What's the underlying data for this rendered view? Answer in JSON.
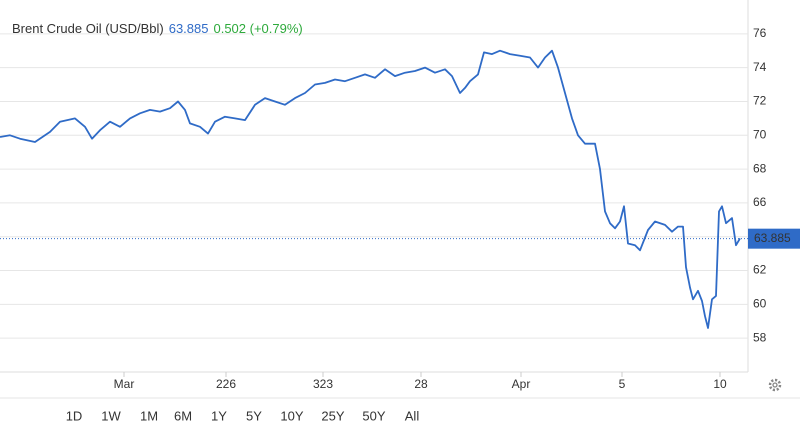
{
  "chart_data": {
    "type": "line",
    "title": "Brent Crude Oil (USD/Bbl)",
    "last_value": 63.885,
    "change_text": "0.502 (+0.79%)",
    "color": "#2f6bc7",
    "grid": true,
    "x": [
      0,
      10,
      20,
      35,
      50,
      60,
      75,
      85,
      92,
      100,
      110,
      120,
      130,
      140,
      150,
      160,
      170,
      178,
      185,
      190,
      200,
      208,
      215,
      225,
      235,
      245,
      255,
      265,
      275,
      285,
      295,
      305,
      315,
      325,
      335,
      345,
      355,
      365,
      375,
      385,
      395,
      405,
      415,
      425,
      435,
      445,
      452,
      460,
      465,
      470,
      478,
      484,
      492,
      500,
      510,
      520,
      530,
      538,
      545,
      552,
      558,
      565,
      572,
      578,
      585,
      595,
      600,
      605,
      610,
      615,
      620,
      624,
      628,
      635,
      640,
      648,
      655,
      665,
      672,
      678,
      683,
      686,
      690,
      693,
      698,
      702,
      705,
      708,
      712,
      716,
      719,
      722,
      726,
      732,
      736,
      740
    ],
    "values": [
      69.9,
      70.0,
      69.8,
      69.6,
      70.2,
      70.8,
      71.0,
      70.5,
      69.8,
      70.3,
      70.8,
      70.5,
      71.0,
      71.3,
      71.5,
      71.4,
      71.6,
      72.0,
      71.5,
      70.7,
      70.5,
      70.1,
      70.8,
      71.1,
      71.0,
      70.9,
      71.8,
      72.2,
      72.0,
      71.8,
      72.2,
      72.5,
      73.0,
      73.1,
      73.3,
      73.2,
      73.4,
      73.6,
      73.4,
      73.9,
      73.5,
      73.7,
      73.8,
      74.0,
      73.7,
      73.9,
      73.5,
      72.5,
      72.8,
      73.2,
      73.6,
      74.9,
      74.8,
      75.0,
      74.8,
      74.7,
      74.6,
      74.0,
      74.6,
      75.0,
      74.0,
      72.5,
      71.0,
      70.0,
      69.5,
      69.5,
      68.0,
      65.5,
      64.8,
      64.5,
      64.9,
      65.8,
      63.6,
      63.5,
      63.2,
      64.4,
      64.9,
      64.7,
      64.3,
      64.6,
      64.6,
      62.2,
      61.0,
      60.3,
      60.8,
      60.2,
      59.3,
      58.6,
      60.3,
      60.5,
      65.5,
      65.8,
      64.8,
      65.1,
      63.5,
      63.9
    ],
    "xlim": [
      0,
      748
    ],
    "xticks": [
      {
        "value": 124,
        "label": "Mar"
      },
      226,
      323,
      {
        "value": 421,
        "label": "28"
      },
      {
        "value": 521,
        "label": "Apr"
      },
      {
        "value": 622,
        "label": "5"
      },
      {
        "value": 720,
        "label": "10"
      }
    ],
    "ylim": [
      56,
      78
    ],
    "yticks": [
      58,
      60,
      62,
      64,
      66,
      68,
      70,
      72,
      74,
      76
    ]
  },
  "ranges": [
    "1D",
    "1W",
    "1M",
    "6M",
    "1Y",
    "5Y",
    "10Y",
    "25Y",
    "50Y",
    "All"
  ],
  "active_range": "1M"
}
